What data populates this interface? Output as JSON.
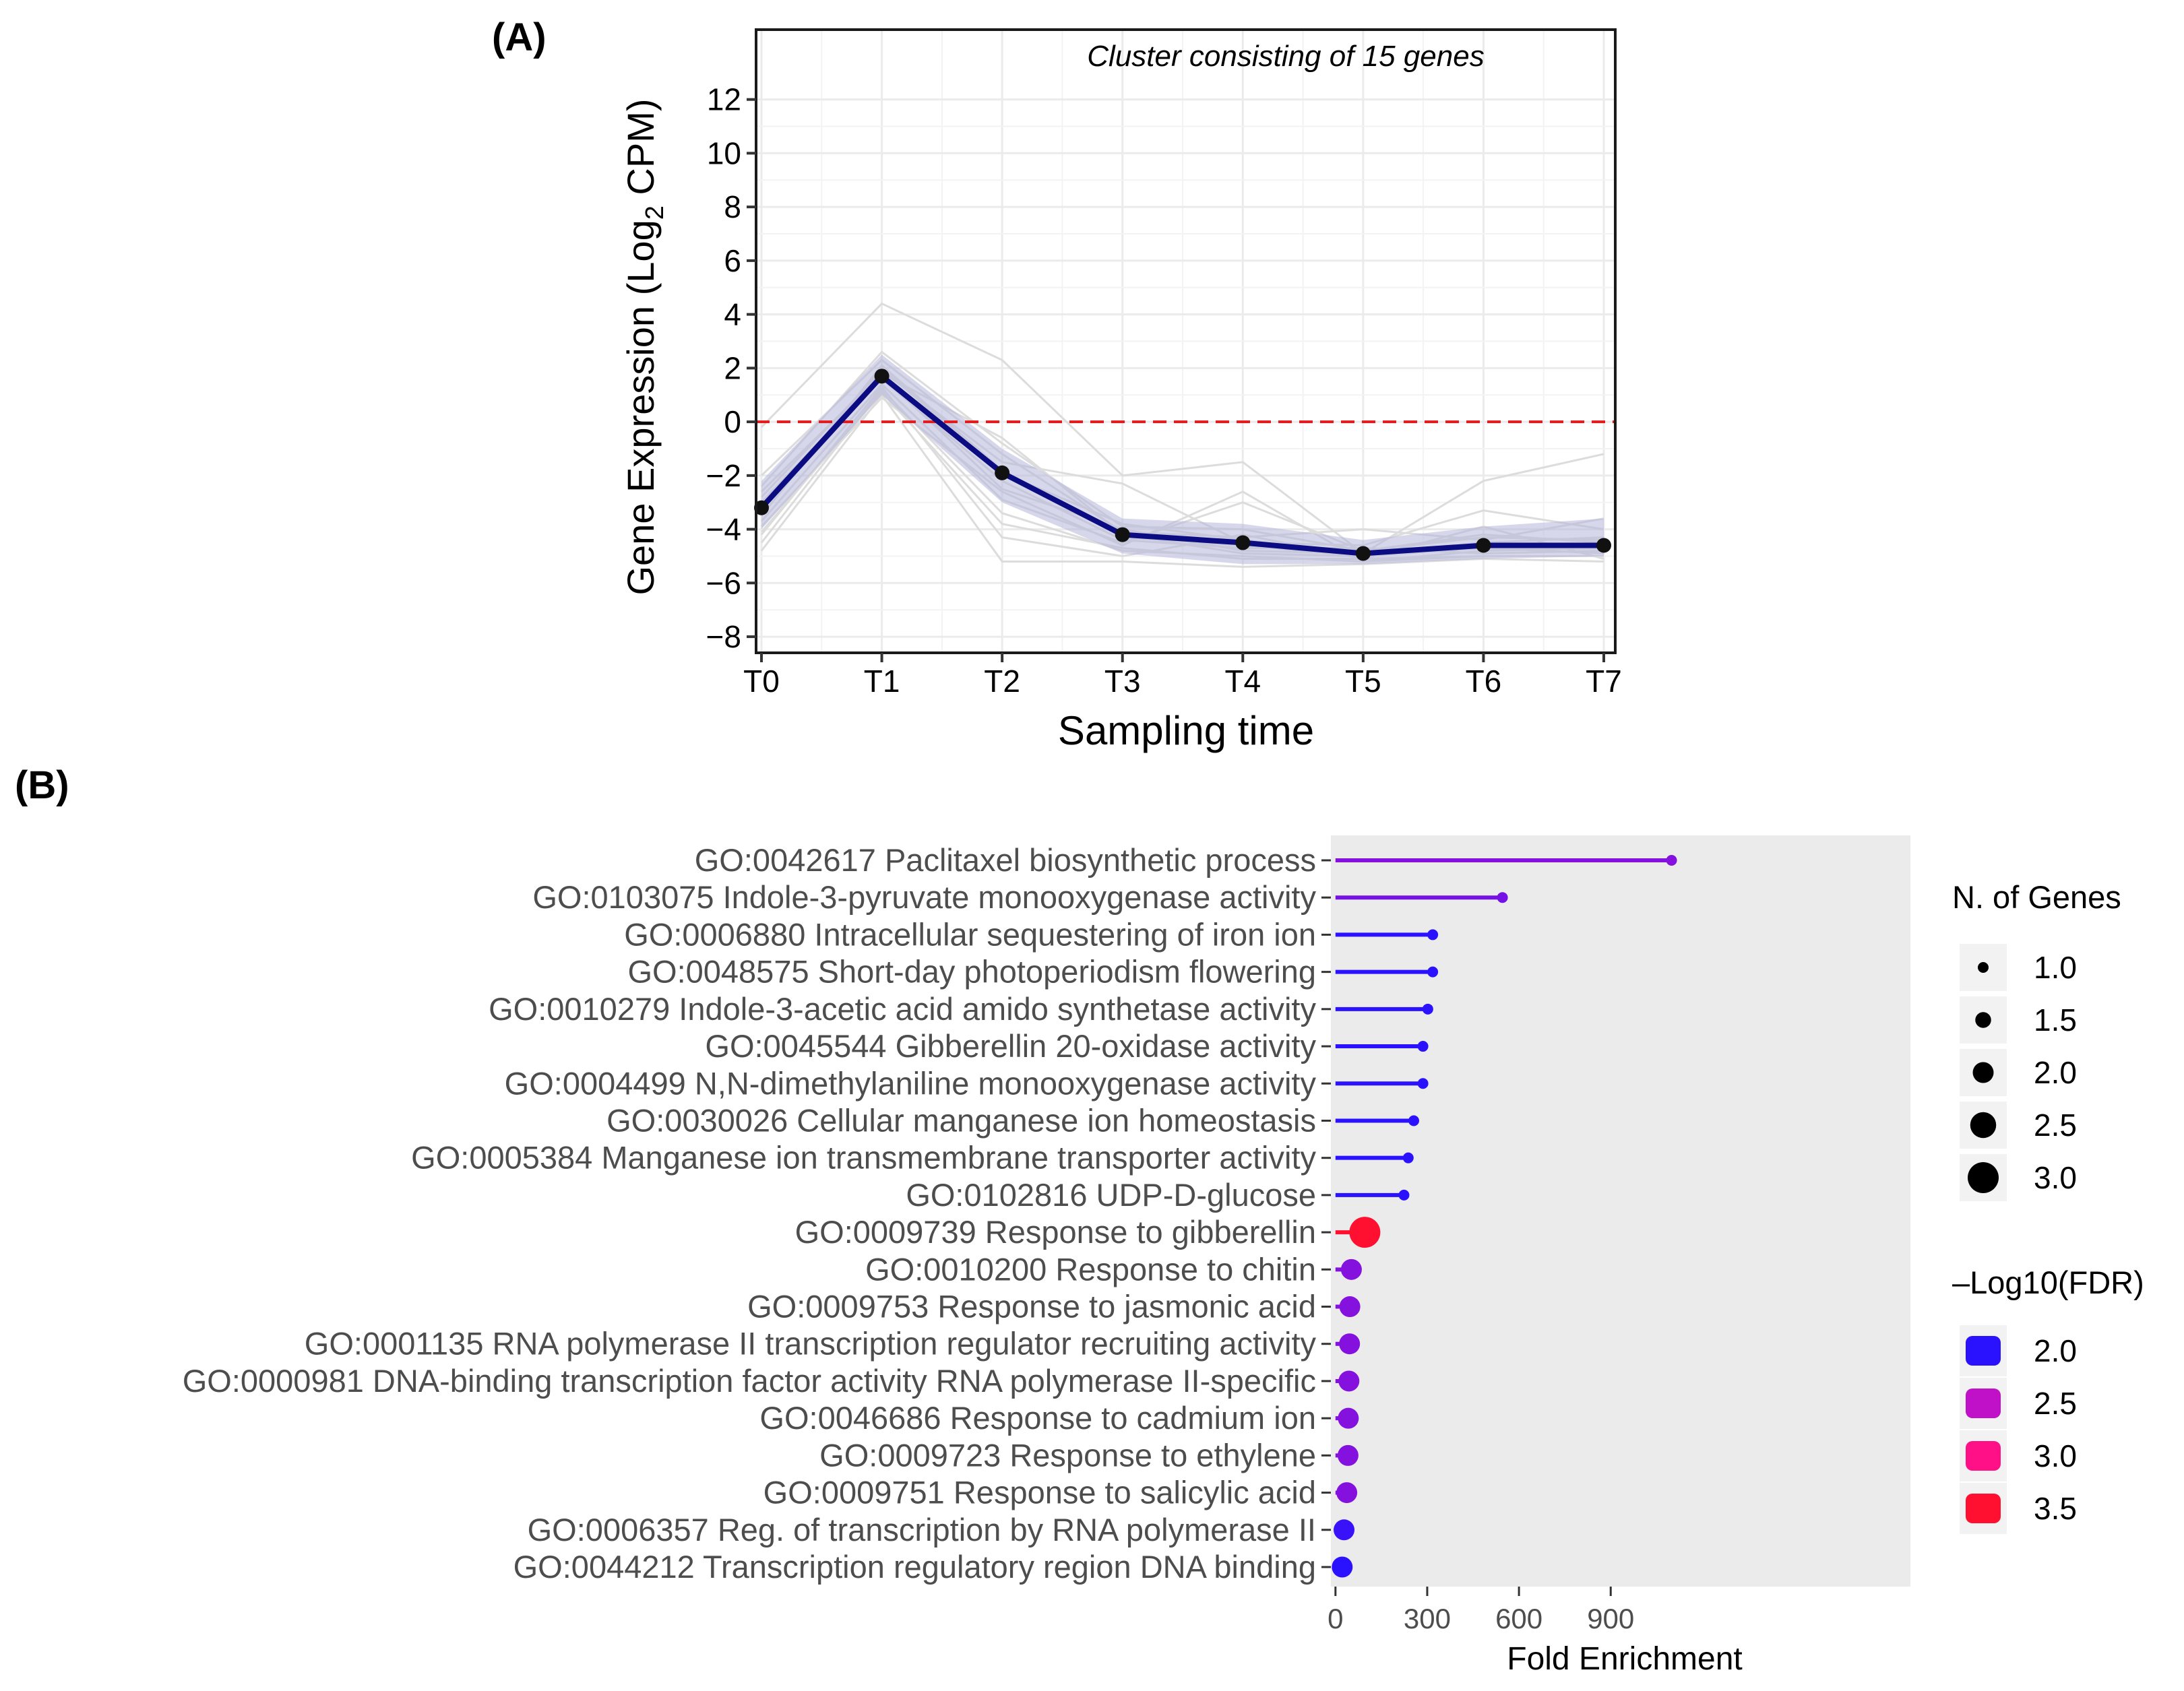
{
  "panel_a": {
    "label": "(A)",
    "annotation": "Cluster consisting of 15 genes",
    "ylabel_prefix": "Gene Expression (Log",
    "ylabel_sub": "2",
    "ylabel_suffix": " CPM)",
    "xlabel": "Sampling time"
  },
  "panel_b": {
    "label": "(B)",
    "xlabel": "Fold Enrichment",
    "size_legend_title": "N. of Genes",
    "color_legend_title": "–Log10(FDR)"
  },
  "chart_data": [
    {
      "type": "line",
      "title": "",
      "annotation": "Cluster consisting of 15 genes",
      "xlabel": "Sampling time",
      "ylabel": "Gene Expression (Log2 CPM)",
      "categories": [
        "T0",
        "T1",
        "T2",
        "T3",
        "T4",
        "T5",
        "T6",
        "T7"
      ],
      "ylim": [
        -8.6,
        14.6
      ],
      "yticks": [
        -8,
        -6,
        -4,
        -2,
        0,
        2,
        4,
        6,
        8,
        10,
        12
      ],
      "ytick_labels": [
        "−8",
        "−6",
        "−4",
        "−2",
        "0",
        "2",
        "4",
        "6",
        "8",
        "10",
        "12"
      ],
      "reference_line": 0,
      "reference_color": "#e31a1c",
      "series": [
        {
          "values": [
            -3.2,
            1.7,
            -1.9,
            -4.2,
            -4.5,
            -4.9,
            -4.6,
            -4.6
          ],
          "color": "#0b0b82",
          "role": "mean"
        }
      ],
      "band": {
        "lower": [
          -4.0,
          1.0,
          -3.0,
          -4.9,
          -5.3,
          -5.3,
          -5.1,
          -5.0
        ],
        "upper": [
          -2.2,
          2.5,
          -1.0,
          -3.6,
          -3.8,
          -4.4,
          -3.9,
          -3.6
        ],
        "color": "#b7b7dd"
      },
      "genes": [
        [
          -3.5,
          2.1,
          -1.8,
          -4.3,
          -4.6,
          -5.0,
          -4.7,
          -4.9
        ],
        [
          -0.2,
          4.4,
          2.3,
          -2.0,
          -1.5,
          -4.9,
          -2.2,
          -1.2
        ],
        [
          -4.8,
          1.0,
          -5.2,
          -5.2,
          -5.4,
          -5.3,
          -5.1,
          -5.2
        ],
        [
          -2.4,
          2.6,
          -0.8,
          -3.9,
          -4.0,
          -4.8,
          -4.3,
          -4.4
        ],
        [
          -4.2,
          1.3,
          -4.3,
          -5.0,
          -4.2,
          -5.1,
          -3.9,
          -5.1
        ],
        [
          -2.8,
          1.9,
          -1.5,
          -2.3,
          -4.5,
          -4.6,
          -3.3,
          -4.0
        ],
        [
          -3.9,
          0.9,
          -2.6,
          -4.6,
          -2.6,
          -5.2,
          -4.8,
          -4.7
        ],
        [
          -2.0,
          2.3,
          -1.2,
          -4.1,
          -4.3,
          -4.0,
          -4.4,
          -3.6
        ],
        [
          -3.1,
          1.6,
          -2.2,
          -4.4,
          -4.7,
          -4.7,
          -4.9,
          -4.8
        ],
        [
          -4.5,
          1.2,
          -3.4,
          -4.8,
          -5.0,
          -5.2,
          -5.0,
          -5.0
        ],
        [
          -3.3,
          2.0,
          -1.9,
          -3.8,
          -4.4,
          -4.9,
          -4.5,
          -4.3
        ],
        [
          -2.6,
          1.8,
          -0.6,
          -4.2,
          -4.9,
          -5.0,
          -4.6,
          -4.6
        ],
        [
          -3.7,
          1.4,
          -2.9,
          -4.5,
          -3.0,
          -4.8,
          -4.2,
          -4.5
        ],
        [
          -3.0,
          1.7,
          -2.5,
          -4.0,
          -4.8,
          -4.9,
          -4.7,
          -4.7
        ],
        [
          -4.1,
          1.1,
          -3.8,
          -4.7,
          -5.1,
          -5.1,
          -5.0,
          -5.0
        ]
      ]
    },
    {
      "type": "scatter",
      "subtype": "lollipop",
      "title": "",
      "xlabel": "Fold Enrichment",
      "ylabel": "",
      "xlim": [
        -15,
        1880
      ],
      "xticks": [
        0,
        300,
        600,
        900
      ],
      "categories": [
        "GO:0042617 Paclitaxel biosynthetic process",
        "GO:0103075 Indole-3-pyruvate monooxygenase activity",
        "GO:0006880 Intracellular sequestering of iron ion",
        "GO:0048575 Short-day photoperiodism flowering",
        "GO:0010279 Indole-3-acetic acid amido synthetase activity",
        "GO:0045544 Gibberellin 20-oxidase activity",
        "GO:0004499 N,N-dimethylaniline monooxygenase activity",
        "GO:0030026 Cellular manganese ion homeostasis",
        "GO:0005384 Manganese ion transmembrane transporter activity",
        "GO:0102816 UDP-D-glucose",
        "GO:0009739 Response to gibberellin",
        "GO:0010200 Response to chitin",
        "GO:0009753 Response to jasmonic acid",
        "GO:0001135 RNA polymerase II transcription regulator recruiting activity",
        "GO:0000981 DNA-binding transcription factor activity RNA polymerase II-specific",
        "GO:0046686 Response to cadmium ion",
        "GO:0009723 Response to ethylene",
        "GO:0009751 Response to salicylic acid",
        "GO:0006357 Reg. of transcription by RNA polymerase II",
        "GO:0044212 Transcription regulatory region DNA binding"
      ],
      "fold_enrichment": [
        1099,
        546,
        318,
        318,
        302,
        286,
        286,
        256,
        238,
        224,
        96,
        52,
        47,
        46,
        44,
        42,
        41,
        37,
        28,
        22
      ],
      "n_genes": [
        1,
        1,
        1,
        1,
        1,
        1,
        1,
        1,
        1,
        1,
        3,
        2,
        2,
        2,
        2,
        2,
        2,
        2,
        2,
        2
      ],
      "neg_log10_fdr": [
        2.3,
        2.25,
        2.0,
        2.0,
        2.0,
        2.0,
        2.0,
        2.0,
        2.0,
        2.0,
        3.65,
        2.3,
        2.3,
        2.3,
        2.3,
        2.3,
        2.3,
        2.3,
        2.05,
        1.95
      ],
      "size_legend": {
        "title": "N. of Genes",
        "labels": [
          "1.0",
          "1.5",
          "2.0",
          "2.5",
          "3.0"
        ],
        "values": [
          1.0,
          1.5,
          2.0,
          2.5,
          3.0
        ]
      },
      "color_legend": {
        "title": "–Log10(FDR)",
        "labels": [
          "2.0",
          "2.5",
          "3.0",
          "3.5"
        ],
        "values": [
          2.0,
          2.5,
          3.0,
          3.5
        ],
        "colors": [
          "#2a12ff",
          "#c010c8",
          "#ff1086",
          "#ff1030"
        ]
      }
    }
  ]
}
